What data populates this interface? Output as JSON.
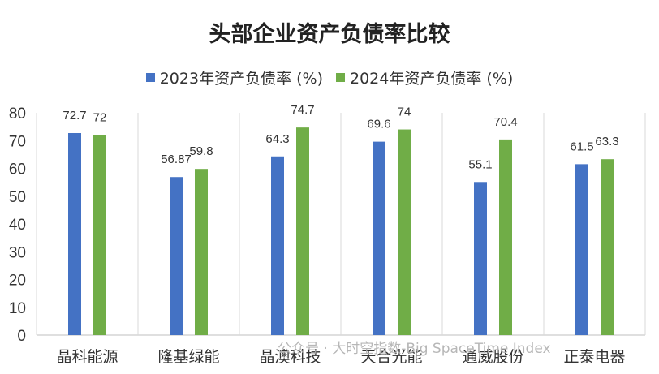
{
  "chart_data": {
    "type": "bar",
    "title": "头部企业资产负债率比较",
    "categories": [
      "晶科能源",
      "隆基绿能",
      "晶澳科技",
      "天合光能",
      "通威股份",
      "正泰电器"
    ],
    "series": [
      {
        "name": "2023年资产负债率 (%)",
        "color": "#4472C4",
        "values": [
          72.7,
          56.87,
          64.3,
          69.6,
          55.1,
          61.5
        ],
        "labels": [
          "72.7",
          "56.87",
          "64.3",
          "69.6",
          "55.1",
          "61.5"
        ]
      },
      {
        "name": "2024年资产负债率 (%)",
        "color": "#70AD47",
        "values": [
          72,
          59.8,
          74.7,
          74,
          70.4,
          63.3
        ],
        "labels": [
          "72",
          "59.8",
          "74.7",
          "74",
          "70.4",
          "63.3"
        ]
      }
    ],
    "ylim": [
      0,
      80
    ],
    "yticks": [
      0,
      10,
      20,
      30,
      40,
      50,
      60,
      70,
      80
    ],
    "xlabel": "",
    "ylabel": "",
    "grid": "vertical-separators",
    "legend": "top-center"
  },
  "watermark": "公众号 · 大时空指数-Big SpaceTime Index"
}
